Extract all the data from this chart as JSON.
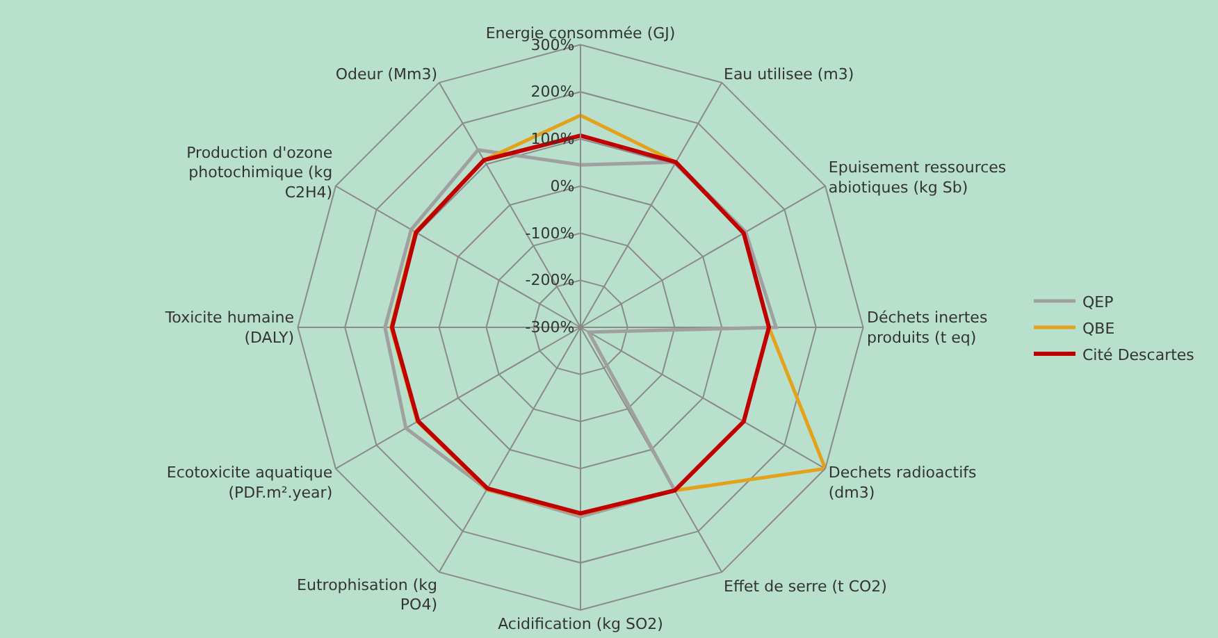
{
  "chart_data": {
    "type": "radar",
    "categories": [
      "Energie consommée (GJ)",
      "Eau utilisee (m3)",
      "Epuisement ressources abiotiques (kg Sb)",
      "Déchets inertes produits (t eq)",
      "Dechets radioactifs (dm3)",
      "Effet de serre (t CO2)",
      "Acidification (kg SO2)",
      "Eutrophisation (kg PO4)",
      "Ecotoxicite aquatique (PDF.m².year)",
      "Toxicite humaine (DALY)",
      "Production d'ozone photochimique (kg C2H4)",
      "Odeur (Mm3)"
    ],
    "series": [
      {
        "name": "QEP",
        "color": "#a0a0a0",
        "values": [
          45,
          105,
          105,
          115,
          -280,
          100,
          102,
          97,
          128,
          115,
          115,
          135
        ]
      },
      {
        "name": "QBE",
        "color": "#e3a21a",
        "values": [
          150,
          105,
          100,
          100,
          300,
          100,
          97,
          97,
          100,
          102,
          105,
          110
        ]
      },
      {
        "name": "Cité Descartes",
        "color": "#c00000",
        "values": [
          107,
          105,
          100,
          100,
          100,
          100,
          95,
          95,
          98,
          100,
          103,
          110
        ]
      }
    ],
    "ylim": [
      -300,
      300
    ],
    "yticks": [
      {
        "value": -300,
        "label": "-300%"
      },
      {
        "value": -200,
        "label": "-200%"
      },
      {
        "value": -100,
        "label": "-100%"
      },
      {
        "value": 0,
        "label": "0%"
      },
      {
        "value": 100,
        "label": "100%"
      },
      {
        "value": 200,
        "label": "200%"
      },
      {
        "value": 300,
        "label": "300%"
      }
    ],
    "legend": "right",
    "grid": true,
    "marker": "none",
    "line_style": "solid"
  }
}
